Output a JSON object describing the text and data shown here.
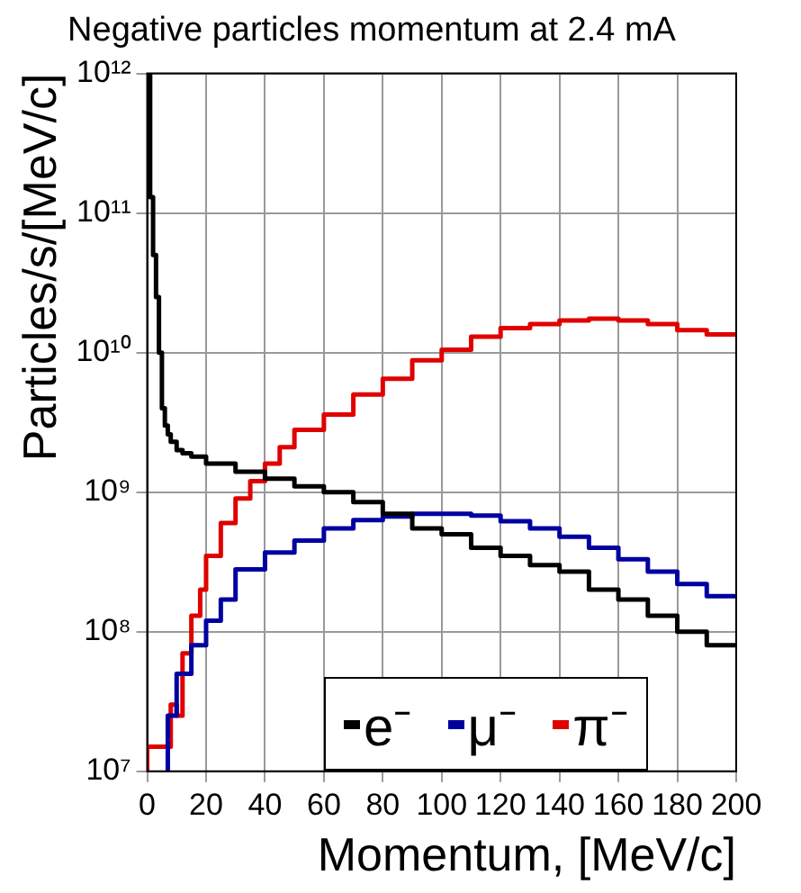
{
  "chart_data": {
    "type": "step",
    "title": "Negative particles momentum at 2.4 mA",
    "xlabel": "Momentum, [MeV/c]",
    "ylabel": "Particles/s/[MeV/c]",
    "xlim": [
      0,
      200
    ],
    "xticks": [
      0,
      20,
      40,
      60,
      80,
      100,
      120,
      140,
      160,
      180,
      200
    ],
    "ylim": [
      10000000,
      1000000000000
    ],
    "yticks": [
      {
        "value": 10000000,
        "label": "10⁷"
      },
      {
        "value": 100000000,
        "label": "10⁸"
      },
      {
        "value": 1000000000,
        "label": "10⁹"
      },
      {
        "value": 10000000000,
        "label": "10¹⁰"
      },
      {
        "value": 100000000000,
        "label": "10¹¹"
      },
      {
        "value": 1000000000000,
        "label": "10¹²"
      }
    ],
    "log": "y",
    "grid": true,
    "legend": "bottom",
    "line_style": "solid",
    "marker": "none",
    "series": [
      {
        "name": "e⁻",
        "color": "#000000",
        "x": [
          1,
          2,
          3,
          4,
          5,
          6,
          7,
          8,
          10,
          12,
          15,
          20,
          30,
          40,
          50,
          60,
          70,
          80,
          90,
          100,
          110,
          120,
          130,
          140,
          150,
          160,
          170,
          180,
          190,
          200
        ],
        "values": [
          1000000000000,
          130000000000,
          50000000000,
          25000000000,
          10000000000,
          4000000000,
          3000000000,
          2600000000,
          2300000000,
          2000000000,
          1900000000,
          1800000000,
          1600000000,
          1400000000,
          1250000000,
          1100000000,
          1000000000,
          850000000,
          700000000,
          550000000,
          500000000,
          400000000,
          350000000,
          300000000,
          270000000,
          200000000,
          170000000,
          130000000,
          100000000,
          80000000
        ]
      },
      {
        "name": "μ⁻",
        "color": "#0000a0",
        "x": [
          7,
          10,
          15,
          20,
          25,
          30,
          40,
          50,
          60,
          70,
          80,
          90,
          100,
          110,
          120,
          130,
          140,
          150,
          160,
          170,
          180,
          190,
          200
        ],
        "values": [
          10000000,
          25000000,
          50000000,
          80000000,
          120000000,
          170000000,
          280000000,
          370000000,
          450000000,
          550000000,
          630000000,
          670000000,
          700000000,
          700000000,
          680000000,
          620000000,
          550000000,
          480000000,
          400000000,
          330000000,
          270000000,
          220000000,
          180000000
        ]
      },
      {
        "name": "π⁻",
        "color": "#e00000",
        "x": [
          0,
          8,
          10,
          12,
          15,
          18,
          20,
          25,
          30,
          35,
          40,
          45,
          50,
          60,
          70,
          80,
          90,
          100,
          110,
          120,
          130,
          140,
          150,
          160,
          170,
          180,
          190,
          200
        ],
        "values": [
          10000000,
          15000000,
          30000000,
          25000000,
          70000000,
          130000000,
          200000000,
          350000000,
          600000000,
          900000000,
          1200000000,
          1600000000,
          2100000000,
          2800000000,
          3600000000,
          5000000000,
          6500000000,
          8800000000,
          10500000000,
          13000000000,
          15000000000,
          16000000000,
          17000000000,
          17500000000,
          17000000000,
          16000000000,
          14500000000,
          13500000000
        ]
      }
    ]
  }
}
